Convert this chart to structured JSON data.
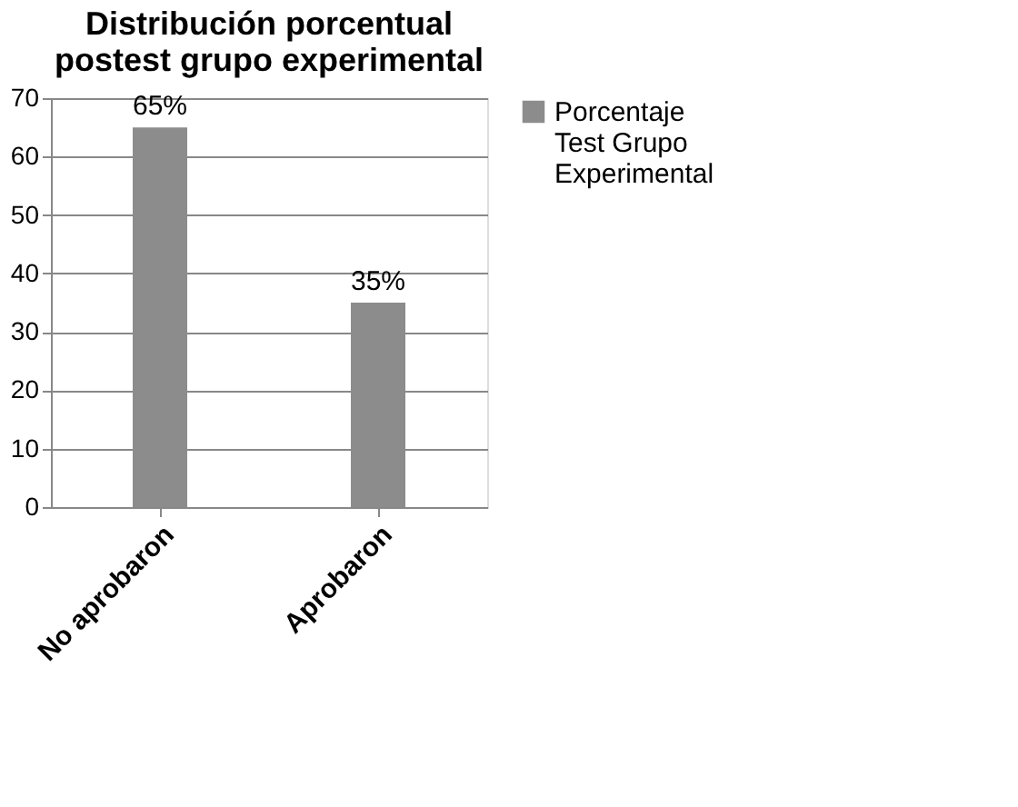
{
  "chart_data": {
    "type": "bar",
    "title": "Distribución porcentual postest grupo experimental",
    "categories": [
      "No aprobaron",
      "Aprobaron"
    ],
    "series": [
      {
        "name": "Porcentaje Test Grupo Experimental",
        "color": "#8c8c8c",
        "values": [
          65,
          35
        ]
      }
    ],
    "value_labels": [
      "65%",
      "35%"
    ],
    "ylim": [
      0,
      70
    ],
    "yticks": [
      0,
      10,
      20,
      30,
      40,
      50,
      60,
      70
    ],
    "grid": "y",
    "legend": "right"
  }
}
